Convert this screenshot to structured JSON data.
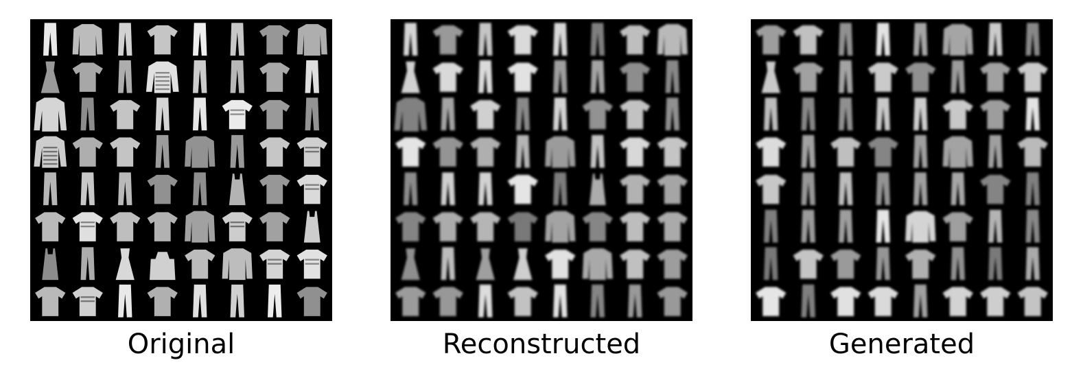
{
  "figure": {
    "panels": [
      {
        "caption": "Original",
        "style": "sharp",
        "grid": [
          [
            "trouser",
            "shirt",
            "trouser",
            "tshirt",
            "trouser",
            "trouser",
            "tshirt",
            "shirt"
          ],
          [
            "dress",
            "tshirt",
            "trouser",
            "pullover",
            "trouser",
            "trouser",
            "tshirt",
            "trouser"
          ],
          [
            "coat",
            "trouser",
            "tshirt",
            "trouser",
            "trouser",
            "tshirt",
            "tshirt",
            "trouser"
          ],
          [
            "pullover",
            "tshirt",
            "tshirt",
            "trouser",
            "shirt",
            "trouser",
            "tshirt",
            "tshirt"
          ],
          [
            "trouser",
            "trouser",
            "trouser",
            "tshirt",
            "trouser",
            "top",
            "tshirt",
            "tshirt"
          ],
          [
            "tshirt",
            "tshirt",
            "tshirt",
            "tshirt",
            "shirt",
            "tshirt",
            "tshirt",
            "top"
          ],
          [
            "top",
            "trouser",
            "dress",
            "bag",
            "tshirt",
            "shirt",
            "tshirt",
            "tshirt"
          ],
          [
            "tshirt",
            "tshirt",
            "trouser",
            "tshirt",
            "trouser",
            "trouser",
            "trouser",
            "tshirt"
          ]
        ]
      },
      {
        "caption": "Reconstructed",
        "style": "blurred",
        "grid": [
          [
            "trouser",
            "tshirt",
            "trouser",
            "tshirt",
            "trouser",
            "trouser",
            "tshirt",
            "shirt"
          ],
          [
            "dress",
            "tshirt",
            "trouser",
            "tshirt",
            "trouser",
            "trouser",
            "tshirt",
            "trouser"
          ],
          [
            "coat",
            "trouser",
            "tshirt",
            "trouser",
            "trouser",
            "tshirt",
            "tshirt",
            "trouser"
          ],
          [
            "tshirt",
            "tshirt",
            "tshirt",
            "trouser",
            "shirt",
            "trouser",
            "tshirt",
            "tshirt"
          ],
          [
            "trouser",
            "trouser",
            "trouser",
            "tshirt",
            "trouser",
            "top",
            "tshirt",
            "tshirt"
          ],
          [
            "tshirt",
            "tshirt",
            "tshirt",
            "tshirt",
            "shirt",
            "tshirt",
            "tshirt",
            "tshirt"
          ],
          [
            "dress",
            "trouser",
            "dress",
            "dress",
            "tshirt",
            "shirt",
            "tshirt",
            "tshirt"
          ],
          [
            "tshirt",
            "tshirt",
            "trouser",
            "tshirt",
            "trouser",
            "trouser",
            "trouser",
            "tshirt"
          ]
        ]
      },
      {
        "caption": "Generated",
        "style": "blurred",
        "grid": [
          [
            "tshirt",
            "tshirt",
            "trouser",
            "trouser",
            "trouser",
            "shirt",
            "trouser",
            "trouser"
          ],
          [
            "dress",
            "tshirt",
            "trouser",
            "tshirt",
            "tshirt",
            "trouser",
            "tshirt",
            "tshirt"
          ],
          [
            "trouser",
            "trouser",
            "trouser",
            "trouser",
            "trouser",
            "tshirt",
            "tshirt",
            "trouser"
          ],
          [
            "tshirt",
            "trouser",
            "tshirt",
            "tshirt",
            "trouser",
            "shirt",
            "trouser",
            "tshirt"
          ],
          [
            "tshirt",
            "trouser",
            "trouser",
            "trouser",
            "trouser",
            "trouser",
            "tshirt",
            "trouser"
          ],
          [
            "trouser",
            "trouser",
            "trouser",
            "trouser",
            "shirt",
            "tshirt",
            "trouser",
            "trouser"
          ],
          [
            "trouser",
            "tshirt",
            "tshirt",
            "trouser",
            "tshirt",
            "trouser",
            "trouser",
            "trouser"
          ],
          [
            "tshirt",
            "trouser",
            "tshirt",
            "tshirt",
            "trouser",
            "tshirt",
            "tshirt",
            "tshirt"
          ]
        ]
      }
    ]
  }
}
